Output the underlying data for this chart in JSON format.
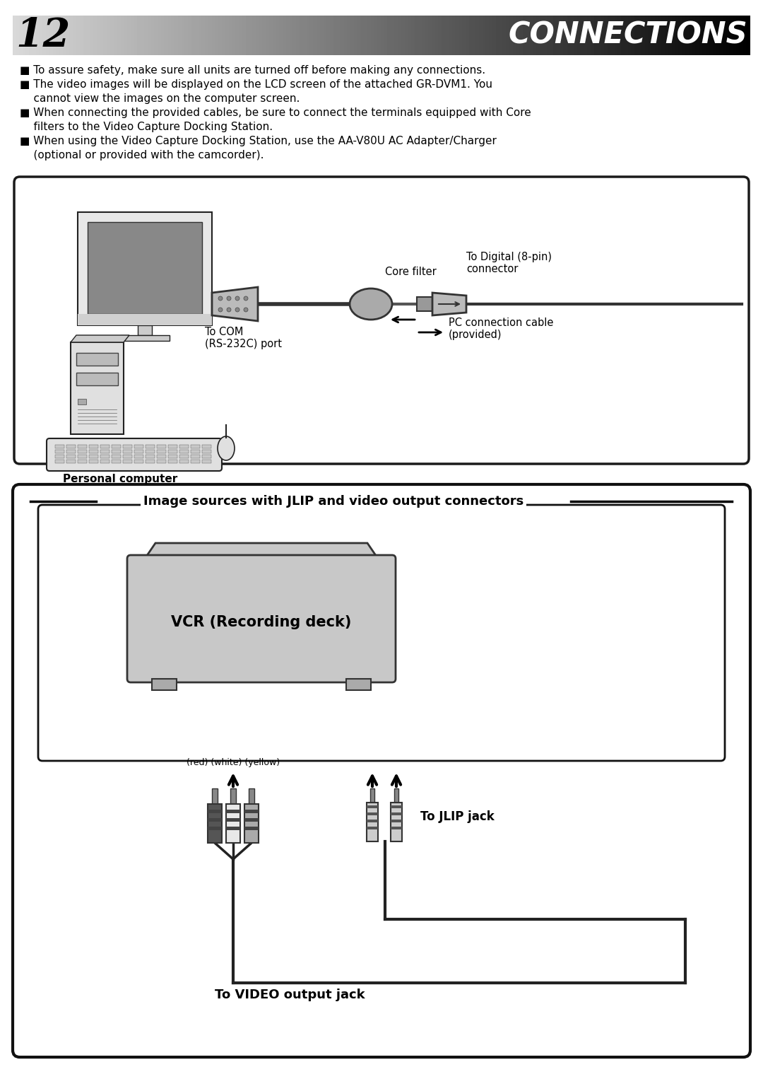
{
  "page_number": "12",
  "title": "CONNECTIONS",
  "bg_color": "#ffffff",
  "bullet_texts": [
    "■ To assure safety, make sure all units are turned off before making any connections.",
    "■ The video images will be displayed on the LCD screen of the attached GR-DVM1. You",
    "    cannot view the images on the computer screen.",
    "■ When connecting the provided cables, be sure to connect the terminals equipped with Core",
    "    filters to the Video Capture Docking Station.",
    "■ When using the Video Capture Docking Station, use the AA-V80U AC Adapter/Charger",
    "    (optional or provided with the camcorder)."
  ],
  "section_label": "Image sources with JLIP and video output connectors",
  "vcr_label": "VCR (Recording deck)",
  "label_personal_computer": "Personal computer",
  "label_core_filter": "Core filter",
  "label_to_digital": "To Digital (8-pin)\nconnector",
  "label_pc_cable": "PC connection cable\n(provided)",
  "label_to_com": "To COM\n(RS-232C) port",
  "label_red_white_yellow": "(red) (white) (yellow)",
  "label_jlip": "To JLIP jack",
  "label_video_output": "To VIDEO output jack"
}
